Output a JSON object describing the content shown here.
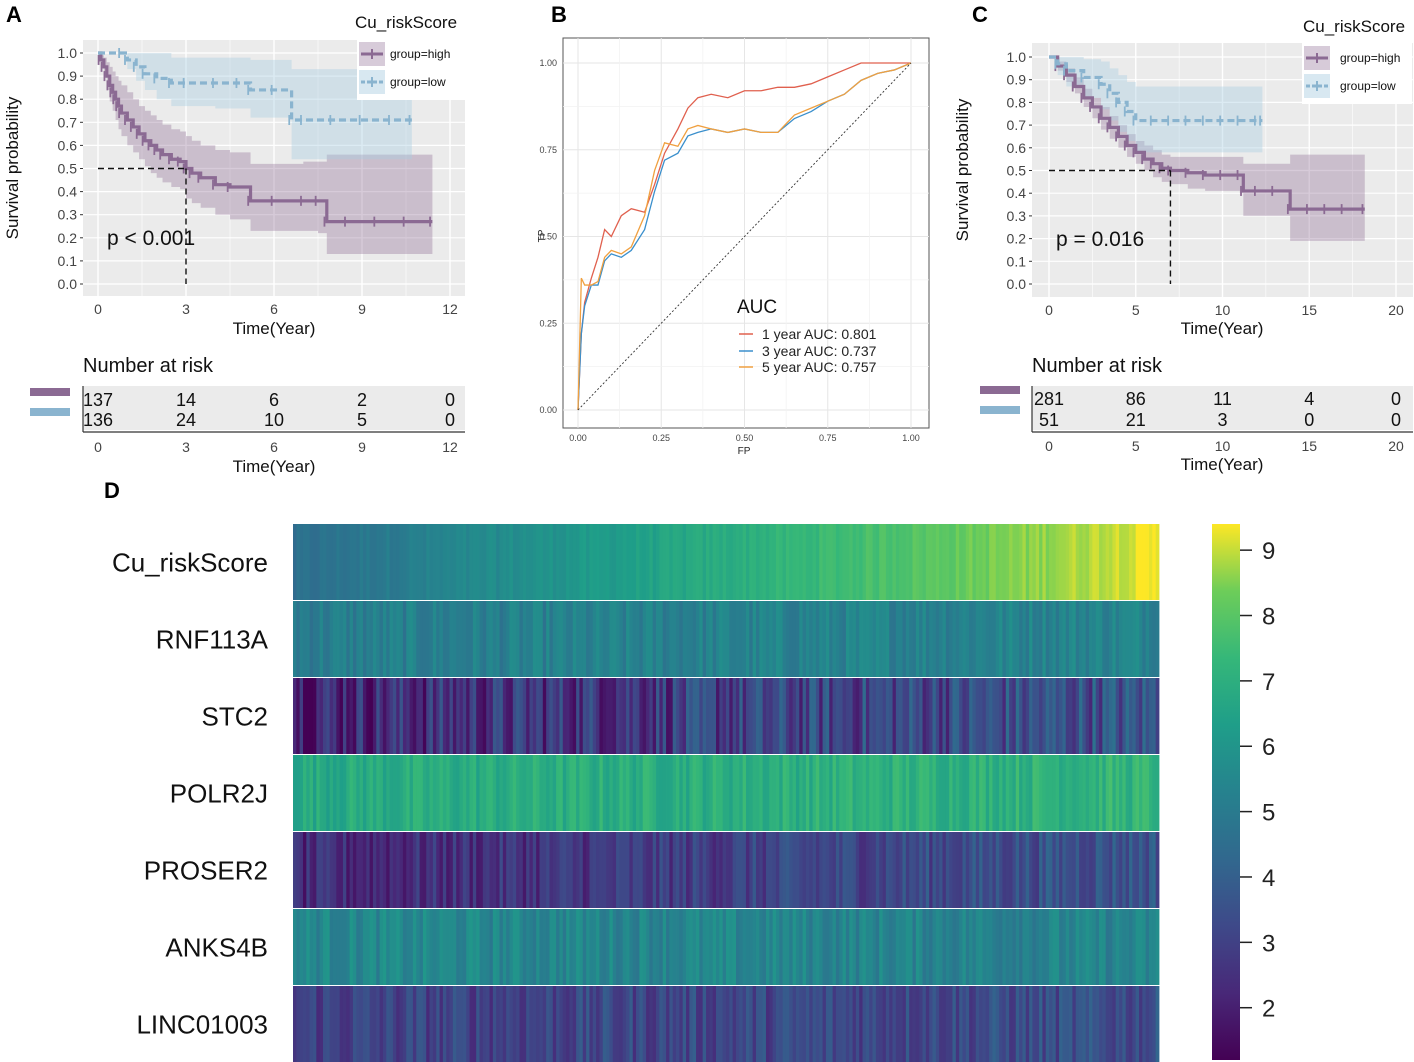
{
  "chart_data": [
    {
      "panel": "A",
      "type": "line",
      "subtype": "kaplan-meier",
      "legend_title": "Cu_riskScore",
      "legend_position": "top-right",
      "xlabel": "Time(Year)",
      "ylabel": "Survival probability",
      "xlim": [
        0,
        12
      ],
      "ylim": [
        0,
        1
      ],
      "xticks": [
        "0",
        "3",
        "6",
        "9",
        "12"
      ],
      "yticks": [
        "0.0",
        "0.1",
        "0.2",
        "0.3",
        "0.4",
        "0.5",
        "0.6",
        "0.7",
        "0.8",
        "0.9",
        "1.0"
      ],
      "p_value_text": "p < 0.001",
      "median_survival": {
        "x": 3,
        "y": 0.5
      },
      "series": [
        {
          "name": "group=high",
          "color": "#8B6A93",
          "band_color": "#8B6A93",
          "x": [
            0,
            0.1,
            0.2,
            0.3,
            0.4,
            0.5,
            0.6,
            0.7,
            0.8,
            1.0,
            1.2,
            1.4,
            1.6,
            1.8,
            2.0,
            2.2,
            2.5,
            2.8,
            3.0,
            3.2,
            3.5,
            4.0,
            4.5,
            5.2,
            6.0,
            7.0,
            7.5,
            7.8,
            8.5,
            9.5,
            10.5,
            11.4
          ],
          "y": [
            1.0,
            0.97,
            0.94,
            0.9,
            0.86,
            0.83,
            0.8,
            0.77,
            0.74,
            0.71,
            0.68,
            0.65,
            0.62,
            0.6,
            0.58,
            0.56,
            0.54,
            0.53,
            0.5,
            0.48,
            0.46,
            0.43,
            0.42,
            0.36,
            0.36,
            0.36,
            0.36,
            0.27,
            0.27,
            0.27,
            0.27,
            0.27
          ],
          "lower": [
            1.0,
            0.95,
            0.9,
            0.84,
            0.79,
            0.75,
            0.71,
            0.67,
            0.64,
            0.6,
            0.57,
            0.54,
            0.51,
            0.48,
            0.46,
            0.44,
            0.42,
            0.41,
            0.37,
            0.35,
            0.33,
            0.3,
            0.28,
            0.23,
            0.23,
            0.23,
            0.22,
            0.13,
            0.13,
            0.13,
            0.13,
            0.13
          ],
          "upper": [
            1.0,
            0.99,
            0.98,
            0.96,
            0.94,
            0.92,
            0.9,
            0.88,
            0.86,
            0.83,
            0.8,
            0.77,
            0.75,
            0.73,
            0.71,
            0.69,
            0.67,
            0.66,
            0.64,
            0.62,
            0.6,
            0.58,
            0.57,
            0.52,
            0.52,
            0.53,
            0.53,
            0.56,
            0.56,
            0.56,
            0.56,
            0.56
          ]
        },
        {
          "name": "group=low",
          "color": "#8AB4CF",
          "band_color": "#A8CDE0",
          "x": [
            0,
            0.8,
            1.0,
            1.3,
            1.6,
            2.0,
            2.5,
            3.0,
            4.0,
            4.8,
            5.2,
            6.0,
            6.6,
            7.0,
            8.0,
            9.0,
            10.0,
            10.7
          ],
          "y": [
            1.0,
            1.0,
            0.97,
            0.94,
            0.91,
            0.89,
            0.87,
            0.87,
            0.87,
            0.87,
            0.84,
            0.84,
            0.71,
            0.71,
            0.71,
            0.71,
            0.71,
            0.71
          ],
          "lower": [
            1.0,
            1.0,
            0.93,
            0.88,
            0.84,
            0.8,
            0.77,
            0.77,
            0.76,
            0.76,
            0.72,
            0.72,
            0.54,
            0.54,
            0.54,
            0.54,
            0.54,
            0.54
          ],
          "upper": [
            1.0,
            1.0,
            1.0,
            1.0,
            1.0,
            1.0,
            0.98,
            0.98,
            0.98,
            0.98,
            0.97,
            0.97,
            0.93,
            0.93,
            0.93,
            0.93,
            0.93,
            0.93
          ]
        }
      ],
      "risk_table": {
        "title": "Number at risk",
        "xlabel": "Time(Year)",
        "times": [
          "0",
          "3",
          "6",
          "9",
          "12"
        ],
        "rows": [
          {
            "group": "high",
            "color": "#8B6A93",
            "values": [
              "137",
              "14",
              "6",
              "2",
              "0"
            ]
          },
          {
            "group": "low",
            "color": "#8AB4CF",
            "values": [
              "136",
              "24",
              "10",
              "5",
              "0"
            ]
          }
        ]
      }
    },
    {
      "panel": "B",
      "type": "line",
      "subtype": "roc",
      "xlabel": "FP",
      "ylabel": "TP",
      "xlim": [
        0,
        1
      ],
      "ylim": [
        0,
        1
      ],
      "xticks": [
        "0.00",
        "0.25",
        "0.50",
        "0.75",
        "1.00"
      ],
      "yticks": [
        "0.00",
        "0.25",
        "0.50",
        "0.75",
        "1.00"
      ],
      "legend_title": "AUC",
      "legend_position": "bottom-right",
      "series": [
        {
          "name": "1 year AUC: 0.801",
          "color": "#E0604E",
          "x": [
            0,
            0.01,
            0.02,
            0.04,
            0.06,
            0.08,
            0.1,
            0.13,
            0.16,
            0.2,
            0.23,
            0.26,
            0.3,
            0.33,
            0.36,
            0.4,
            0.45,
            0.5,
            0.55,
            0.6,
            0.65,
            0.7,
            0.75,
            0.8,
            0.85,
            0.9,
            0.95,
            1.0
          ],
          "y": [
            0,
            0.22,
            0.31,
            0.38,
            0.44,
            0.52,
            0.5,
            0.56,
            0.58,
            0.57,
            0.65,
            0.74,
            0.81,
            0.87,
            0.9,
            0.91,
            0.9,
            0.92,
            0.92,
            0.93,
            0.93,
            0.94,
            0.96,
            0.98,
            1.0,
            1.0,
            1.0,
            1.0
          ]
        },
        {
          "name": "3 year AUC: 0.737",
          "color": "#3A8FCC",
          "x": [
            0,
            0.01,
            0.02,
            0.04,
            0.06,
            0.08,
            0.1,
            0.13,
            0.16,
            0.2,
            0.23,
            0.26,
            0.3,
            0.33,
            0.36,
            0.4,
            0.45,
            0.5,
            0.55,
            0.6,
            0.65,
            0.7,
            0.75,
            0.8,
            0.85,
            0.9,
            0.95,
            1.0
          ],
          "y": [
            0,
            0.22,
            0.3,
            0.36,
            0.36,
            0.43,
            0.45,
            0.44,
            0.46,
            0.52,
            0.63,
            0.72,
            0.74,
            0.79,
            0.8,
            0.81,
            0.8,
            0.81,
            0.8,
            0.8,
            0.84,
            0.86,
            0.89,
            0.91,
            0.95,
            0.97,
            0.98,
            1.0
          ]
        },
        {
          "name": "5 year AUC: 0.757",
          "color": "#F0A040",
          "x": [
            0,
            0.01,
            0.02,
            0.04,
            0.06,
            0.08,
            0.1,
            0.13,
            0.16,
            0.2,
            0.23,
            0.26,
            0.3,
            0.33,
            0.36,
            0.4,
            0.45,
            0.5,
            0.55,
            0.6,
            0.65,
            0.7,
            0.75,
            0.8,
            0.85,
            0.9,
            0.95,
            1.0
          ],
          "y": [
            0,
            0.38,
            0.36,
            0.36,
            0.37,
            0.44,
            0.46,
            0.45,
            0.47,
            0.56,
            0.69,
            0.77,
            0.76,
            0.81,
            0.82,
            0.81,
            0.8,
            0.81,
            0.8,
            0.8,
            0.85,
            0.87,
            0.89,
            0.91,
            0.95,
            0.97,
            0.98,
            1.0
          ]
        },
        {
          "name": "reference",
          "color": "#333333",
          "x": [
            0,
            1
          ],
          "y": [
            0,
            1
          ]
        }
      ]
    },
    {
      "panel": "C",
      "type": "line",
      "subtype": "kaplan-meier",
      "legend_title": "Cu_riskScore",
      "legend_position": "top-right",
      "xlabel": "Time(Year)",
      "ylabel": "Survival probability",
      "xlim": [
        0,
        20
      ],
      "ylim": [
        0,
        1
      ],
      "xticks": [
        "0",
        "5",
        "10",
        "15",
        "20"
      ],
      "yticks": [
        "0.0",
        "0.1",
        "0.2",
        "0.3",
        "0.4",
        "0.5",
        "0.6",
        "0.7",
        "0.8",
        "0.9",
        "1.0"
      ],
      "p_value_text": "p = 0.016",
      "median_survival": {
        "x": 7,
        "y": 0.5
      },
      "series": [
        {
          "name": "group=high",
          "color": "#8B6A93",
          "band_color": "#8B6A93",
          "x": [
            0,
            0.5,
            1.0,
            1.5,
            2.0,
            2.5,
            3.0,
            3.5,
            4.0,
            4.5,
            5.0,
            5.5,
            6.0,
            6.5,
            7.0,
            8.0,
            9.0,
            10.0,
            11.0,
            11.2,
            12.0,
            13.0,
            13.9,
            15.0,
            16.0,
            17.0,
            18.2
          ],
          "y": [
            1.0,
            0.96,
            0.92,
            0.87,
            0.82,
            0.78,
            0.73,
            0.69,
            0.65,
            0.61,
            0.58,
            0.55,
            0.53,
            0.51,
            0.5,
            0.49,
            0.48,
            0.48,
            0.48,
            0.41,
            0.41,
            0.41,
            0.33,
            0.33,
            0.33,
            0.33,
            0.33
          ],
          "lower": [
            1.0,
            0.94,
            0.89,
            0.84,
            0.78,
            0.73,
            0.68,
            0.64,
            0.6,
            0.56,
            0.53,
            0.5,
            0.47,
            0.45,
            0.44,
            0.42,
            0.41,
            0.41,
            0.4,
            0.3,
            0.3,
            0.3,
            0.19,
            0.19,
            0.19,
            0.19,
            0.19
          ],
          "upper": [
            1.0,
            0.98,
            0.95,
            0.91,
            0.86,
            0.82,
            0.78,
            0.74,
            0.7,
            0.66,
            0.63,
            0.61,
            0.59,
            0.57,
            0.56,
            0.56,
            0.56,
            0.56,
            0.56,
            0.53,
            0.53,
            0.53,
            0.57,
            0.57,
            0.57,
            0.57,
            0.57
          ]
        },
        {
          "name": "group=low",
          "color": "#8AB4CF",
          "band_color": "#A8CDE0",
          "x": [
            0,
            0.5,
            1.0,
            2.0,
            3.0,
            3.5,
            4.0,
            4.5,
            5.0,
            6.0,
            7.0,
            8.0,
            9.0,
            10.0,
            11.0,
            12.0,
            12.3
          ],
          "y": [
            1.0,
            0.97,
            0.94,
            0.91,
            0.88,
            0.84,
            0.8,
            0.76,
            0.72,
            0.72,
            0.72,
            0.72,
            0.72,
            0.72,
            0.72,
            0.72,
            0.72
          ],
          "lower": [
            1.0,
            0.92,
            0.87,
            0.82,
            0.77,
            0.72,
            0.67,
            0.63,
            0.58,
            0.58,
            0.58,
            0.58,
            0.58,
            0.58,
            0.58,
            0.58,
            0.58
          ],
          "upper": [
            1.0,
            1.0,
            1.0,
            0.99,
            0.98,
            0.95,
            0.92,
            0.89,
            0.87,
            0.87,
            0.87,
            0.87,
            0.87,
            0.87,
            0.87,
            0.87,
            0.87
          ]
        }
      ],
      "risk_table": {
        "title": "Number at risk",
        "xlabel": "Time(Year)",
        "times": [
          "0",
          "5",
          "10",
          "15",
          "20"
        ],
        "rows": [
          {
            "group": "high",
            "color": "#8B6A93",
            "values": [
              "281",
              "86",
              "11",
              "4",
              "0"
            ]
          },
          {
            "group": "low",
            "color": "#8AB4CF",
            "values": [
              "51",
              "21",
              "3",
              "0",
              "0"
            ]
          }
        ]
      }
    },
    {
      "panel": "D",
      "type": "heatmap",
      "rows": [
        "Cu_riskScore",
        "RNF113A",
        "STC2",
        "POLR2J",
        "PROSER2",
        "ANKS4B",
        "LINC01003"
      ],
      "n_columns": 260,
      "colorscale": "viridis",
      "color_range": [
        1.2,
        9.4
      ],
      "colorbar_ticks": [
        "2",
        "3",
        "4",
        "5",
        "6",
        "7",
        "8",
        "9"
      ],
      "row_profiles": [
        {
          "name": "Cu_riskScore",
          "start": 4.5,
          "end": 9.3,
          "noise": 0.25
        },
        {
          "name": "RNF113A",
          "start": 5.1,
          "end": 5.4,
          "noise": 0.55
        },
        {
          "name": "STC2",
          "start": 2.3,
          "end": 3.6,
          "noise": 1.3
        },
        {
          "name": "POLR2J",
          "start": 6.8,
          "end": 7.2,
          "noise": 0.55
        },
        {
          "name": "PROSER2",
          "start": 2.2,
          "end": 3.7,
          "noise": 0.8
        },
        {
          "name": "ANKS4B",
          "start": 5.5,
          "end": 5.3,
          "noise": 0.6
        },
        {
          "name": "LINC01003",
          "start": 3.0,
          "end": 3.4,
          "noise": 0.8
        }
      ]
    }
  ],
  "panel_labels": [
    "A",
    "B",
    "C",
    "D"
  ]
}
